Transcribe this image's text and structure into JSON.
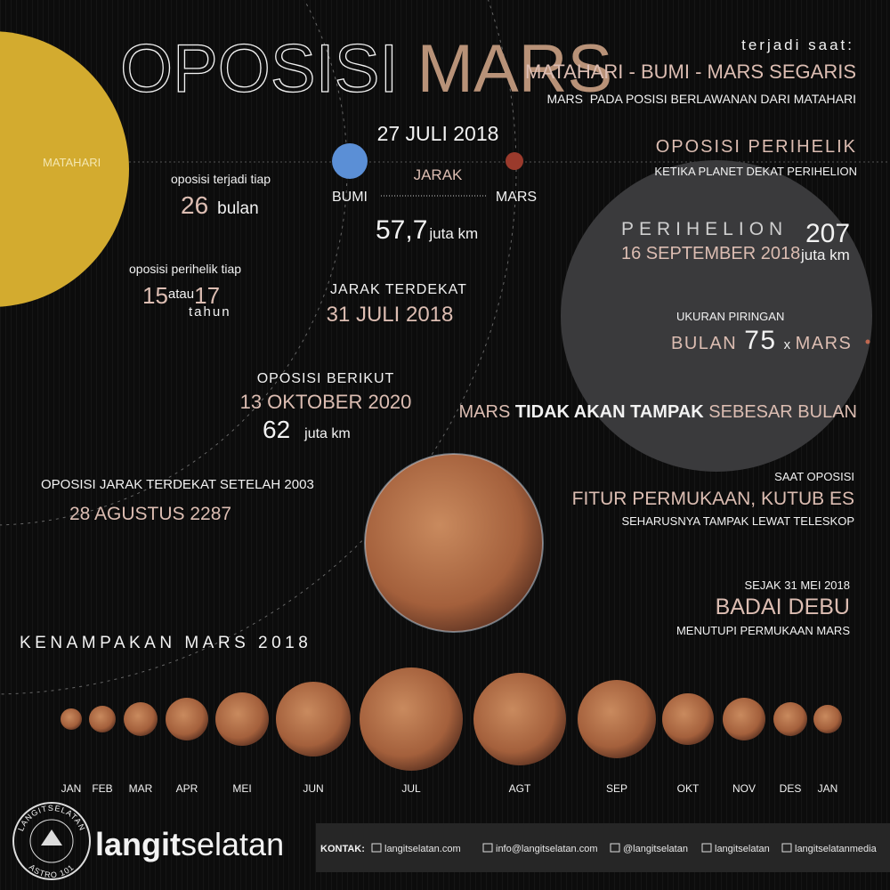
{
  "title": {
    "part1": "OPOSISI",
    "part2": "MARS"
  },
  "alignment": {
    "intro": "terjadi saat:",
    "headline": "MATAHARI - BUMI - MARS SEGARIS",
    "note": "MARS  PADA POSISI BERLAWANAN DARI MATAHARI"
  },
  "sun_label": "MATAHARI",
  "opposition": {
    "date": "27 JULI 2018",
    "distance_label": "JARAK",
    "earth": "BUMI",
    "mars": "MARS",
    "distance_value": "57,7",
    "distance_unit": "juta km"
  },
  "frequency": {
    "text": "oposisi terjadi tiap",
    "value": "26",
    "unit": "bulan"
  },
  "perihelic_frequency": {
    "text": "oposisi perihelik tiap",
    "value1": "15",
    "conjunction": "atau",
    "value2": "17",
    "unit": "tahun"
  },
  "closest": {
    "label": "JARAK TERDEKAT",
    "date": "31 JULI 2018"
  },
  "next": {
    "label": "OPOSISI BERIKUT",
    "date": "13 OKTOBER 2020",
    "distance": "62",
    "unit": "juta km"
  },
  "record": {
    "label": "OPOSISI JARAK TERDEKAT SETELAH 2003",
    "date": "28 AGUSTUS 2287"
  },
  "perihelic": {
    "title": "OPOSISI PERIHELIK",
    "note": "KETIKA PLANET DEKAT PERIHELION"
  },
  "perihelion": {
    "label": "PERIHELION",
    "date": "16 SEPTEMBER 2018",
    "distance": "207",
    "unit": "juta km"
  },
  "disc": {
    "label": "UKURAN PIRINGAN",
    "moon": "BULAN",
    "ratio": "75",
    "times": "x",
    "mars": "MARS"
  },
  "comparison": {
    "part1": "MARS",
    "part2": "TIDAK AKAN TAMPAK",
    "part3": "SEBESAR BULAN"
  },
  "features": {
    "intro": "SAAT OPOSISI",
    "headline": "FITUR PERMUKAAN, KUTUB ES",
    "note": "SEHARUSNYA TAMPAK LEWAT TELESKOP"
  },
  "storm": {
    "intro": "SEJAK 31 MEI 2018",
    "headline": "BADAI DEBU",
    "note": "MENUTUPI PERMUKAAN MARS"
  },
  "appearance": {
    "title": "KENAMPAKAN MARS 2018",
    "months": [
      "JAN",
      "FEB",
      "MAR",
      "APR",
      "MEI",
      "JUN",
      "JUL",
      "AGT",
      "SEP",
      "OKT",
      "NOV",
      "DES",
      "JAN"
    ]
  },
  "footer": {
    "logo_top": "LANGITSELATAN",
    "logo_bottom": "ASTRO 101",
    "brand1": "langit",
    "brand2": "selatan",
    "contact_label": "KONTAK:",
    "links": [
      "langitselatan.com",
      "info@langitselatan.com",
      "@langitselatan",
      "langitselatan",
      "langitselatanmedia"
    ]
  }
}
